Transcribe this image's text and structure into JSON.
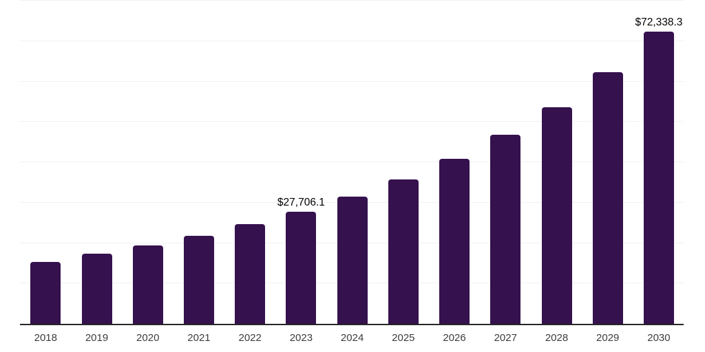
{
  "chart_data": {
    "type": "bar",
    "title": "",
    "categories": [
      "2018",
      "2019",
      "2020",
      "2021",
      "2022",
      "2023",
      "2024",
      "2025",
      "2026",
      "2027",
      "2028",
      "2029",
      "2030"
    ],
    "values": [
      15400,
      17300,
      19350,
      21750,
      24600,
      27706.1,
      31450,
      35700,
      40800,
      46850,
      53700,
      62300,
      72338.3
    ],
    "value_labels": [
      {
        "category": "2023",
        "text": "$27,706.1"
      },
      {
        "category": "2030",
        "text": "$72,338.3"
      }
    ],
    "xlabel": "",
    "ylabel": "",
    "ylim": [
      0,
      80000
    ],
    "gridline_step": 10000,
    "grid": "horizontal-only",
    "legend": "none",
    "colors": {
      "bar": "#35114E",
      "gridline": "#f1f1f1",
      "axis_line": "#262626",
      "x_tick_label": "#3d3d3d",
      "value_label": "#000000",
      "background": "#ffffff"
    }
  }
}
